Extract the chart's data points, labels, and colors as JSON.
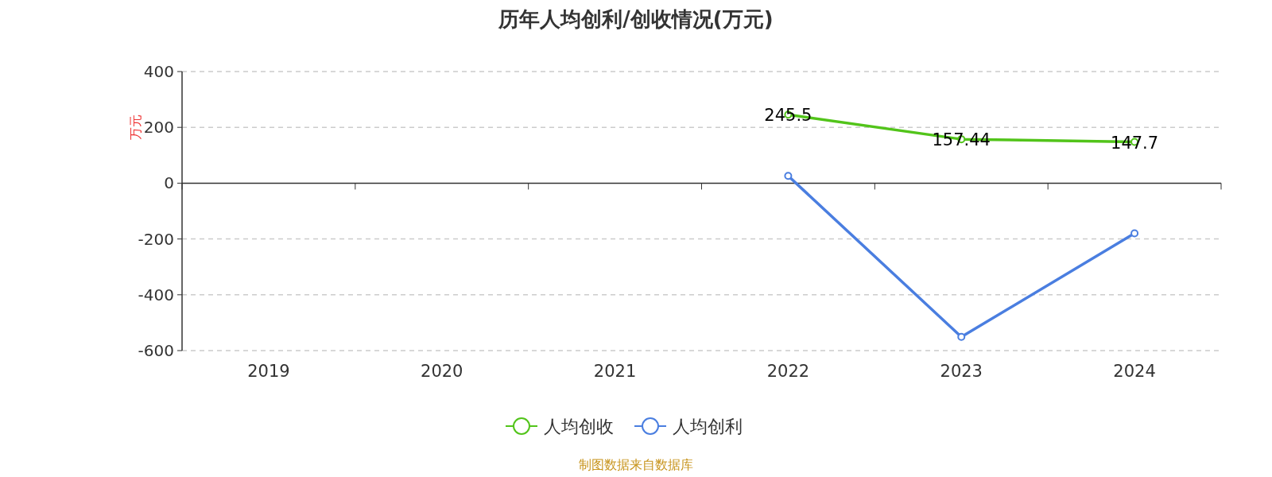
{
  "chart_data": {
    "type": "line",
    "title": "历年人均创利/创收情况(万元)",
    "ylabel": "万元",
    "categories": [
      "2019",
      "2020",
      "2021",
      "2022",
      "2023",
      "2024"
    ],
    "series": [
      {
        "name": "人均创收",
        "color": "#52c41a",
        "values": [
          null,
          null,
          null,
          245.5,
          157.44,
          147.7
        ],
        "value_labels": [
          null,
          null,
          null,
          "245.5",
          "157.44",
          "147.7"
        ]
      },
      {
        "name": "人均创利",
        "color": "#4a7ee0",
        "values": [
          null,
          null,
          null,
          26,
          -551,
          -180
        ]
      }
    ],
    "ylim": [
      -600,
      400
    ],
    "yticks": [
      -600,
      -400,
      -200,
      0,
      200,
      400
    ],
    "grid": "y",
    "legend": "bottom",
    "marker": "circle",
    "annotations": [
      "制图数据来自数据库"
    ]
  }
}
